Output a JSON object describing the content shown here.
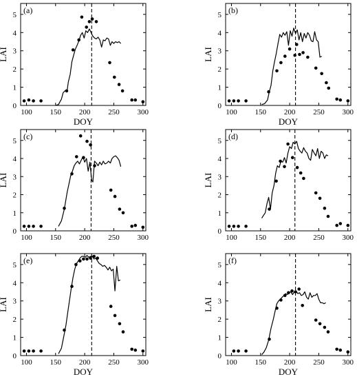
{
  "chart_data": [
    {
      "type": "scatter",
      "panel_label": "(a)",
      "xlabel": "DOY",
      "ylabel": "LAI",
      "xlim": [
        90,
        305
      ],
      "ylim": [
        0,
        5.6
      ],
      "xticks": [
        100,
        150,
        200,
        250,
        300
      ],
      "yticks": [
        0,
        1,
        2,
        3,
        4,
        5
      ],
      "vline_x": 212,
      "series": [
        {
          "kind": "points",
          "x": [
            96,
            104,
            112,
            125,
            169,
            180,
            190,
            195,
            203,
            208,
            213,
            220,
            243,
            251,
            259,
            265,
            281,
            287,
            300
          ],
          "y": [
            0.25,
            0.3,
            0.25,
            0.25,
            0.8,
            3.05,
            3.6,
            4.85,
            4.3,
            4.6,
            4.75,
            4.6,
            2.35,
            1.55,
            1.15,
            0.8,
            0.3,
            0.3,
            0.2
          ]
        },
        {
          "kind": "line",
          "x": [
            150,
            155,
            160,
            163,
            166,
            170,
            172,
            175,
            178,
            181,
            184,
            187,
            190,
            193,
            196,
            199,
            202,
            205,
            208,
            211,
            214,
            217,
            220,
            223,
            226,
            229,
            232,
            235,
            238,
            241,
            244,
            247,
            250,
            253,
            256,
            259,
            262
          ],
          "y": [
            0,
            0.05,
            0.35,
            0.7,
            0.8,
            0.85,
            1.3,
            1.7,
            2.4,
            2.75,
            3.1,
            3.3,
            3.55,
            3.85,
            4.0,
            3.7,
            4.1,
            4.0,
            4.2,
            4.0,
            3.8,
            3.7,
            3.65,
            3.75,
            3.6,
            3.2,
            3.6,
            3.55,
            3.7,
            3.65,
            3.3,
            3.5,
            3.4,
            3.5,
            3.45,
            3.5,
            3.4
          ]
        }
      ]
    },
    {
      "type": "scatter",
      "panel_label": "(b)",
      "xlabel": "DOY",
      "ylabel": "LAI",
      "xlim": [
        90,
        305
      ],
      "ylim": [
        0,
        5.6
      ],
      "xticks": [
        100,
        150,
        200,
        250,
        300
      ],
      "yticks": [
        0,
        1,
        2,
        3,
        4,
        5
      ],
      "vline_x": 210,
      "series": [
        {
          "kind": "points",
          "x": [
            96,
            104,
            112,
            125,
            164,
            178,
            185,
            192,
            200,
            209,
            212,
            217,
            223,
            231,
            245,
            255,
            263,
            267,
            281,
            287,
            300
          ],
          "y": [
            0.25,
            0.25,
            0.25,
            0.25,
            0.75,
            1.9,
            2.35,
            2.7,
            3.1,
            2.75,
            3.35,
            2.8,
            2.9,
            2.65,
            2.05,
            1.75,
            1.25,
            0.95,
            0.35,
            0.3,
            0.25
          ]
        },
        {
          "kind": "line",
          "x": [
            152,
            157,
            162,
            165,
            168,
            171,
            174,
            177,
            180,
            183,
            186,
            189,
            192,
            195,
            198,
            201,
            204,
            207,
            210,
            213,
            216,
            219,
            222,
            225,
            228,
            231,
            234,
            237,
            240,
            243,
            246,
            249,
            252,
            255
          ],
          "y": [
            0.05,
            0.1,
            0.3,
            0.75,
            1.1,
            1.9,
            2.4,
            2.85,
            3.4,
            3.9,
            3.75,
            4.0,
            3.85,
            4.05,
            3.3,
            4.1,
            3.8,
            4.25,
            3.95,
            4.15,
            3.6,
            4.0,
            3.5,
            3.95,
            3.7,
            4.0,
            3.85,
            3.55,
            3.5,
            4.05,
            3.6,
            3.5,
            2.65,
            2.7
          ]
        }
      ]
    },
    {
      "type": "scatter",
      "panel_label": "(c)",
      "xlabel": "",
      "ylabel": "LAI",
      "xlim": [
        90,
        305
      ],
      "ylim": [
        0,
        5.6
      ],
      "xticks": [
        100,
        150,
        200,
        250,
        300
      ],
      "yticks": [
        0,
        1,
        2,
        3,
        4,
        5
      ],
      "vline_x": 211,
      "series": [
        {
          "kind": "points",
          "x": [
            96,
            104,
            112,
            125,
            165,
            178,
            186,
            193,
            198,
            204,
            210,
            217,
            245,
            252,
            260,
            266,
            281,
            287,
            300
          ],
          "y": [
            0.25,
            0.25,
            0.25,
            0.25,
            1.25,
            3.15,
            4.1,
            5.25,
            4.05,
            4.95,
            4.75,
            3.6,
            2.25,
            1.9,
            1.2,
            1.0,
            0.25,
            0.3,
            0.2
          ]
        },
        {
          "kind": "line",
          "x": [
            155,
            160,
            165,
            170,
            173,
            176,
            179,
            182,
            185,
            188,
            191,
            194,
            197,
            200,
            203,
            206,
            209,
            212,
            214,
            217,
            220,
            223,
            226,
            229,
            232,
            235,
            238,
            241,
            244,
            247,
            250,
            253,
            256,
            259,
            262
          ],
          "y": [
            0.25,
            0.55,
            1.2,
            2.15,
            2.6,
            3.05,
            3.3,
            3.6,
            3.75,
            3.85,
            3.7,
            3.9,
            4.1,
            3.8,
            4.0,
            3.3,
            3.8,
            2.8,
            2.7,
            3.85,
            3.75,
            3.6,
            3.8,
            3.65,
            3.85,
            3.7,
            3.75,
            3.85,
            3.75,
            4.0,
            4.1,
            4.15,
            4.05,
            3.9,
            3.55
          ]
        }
      ]
    },
    {
      "type": "scatter",
      "panel_label": "(d)",
      "xlabel": "",
      "ylabel": "LAI",
      "xlim": [
        90,
        305
      ],
      "ylim": [
        0,
        5.6
      ],
      "xticks": [
        100,
        150,
        200,
        250,
        300
      ],
      "yticks": [
        0,
        1,
        2,
        3,
        4,
        5
      ],
      "vline_x": 209,
      "series": [
        {
          "kind": "points",
          "x": [
            96,
            104,
            112,
            125,
            165,
            177,
            184,
            191,
            197,
            205,
            213,
            219,
            224,
            245,
            252,
            260,
            266,
            281,
            287,
            300
          ],
          "y": [
            0.25,
            0.25,
            0.25,
            0.25,
            1.2,
            2.75,
            3.85,
            3.55,
            4.8,
            4.05,
            3.5,
            3.2,
            2.9,
            2.1,
            1.8,
            1.25,
            0.8,
            0.3,
            0.4,
            0.3
          ]
        },
        {
          "kind": "line",
          "x": [
            152,
            155,
            158,
            161,
            164,
            167,
            170,
            173,
            176,
            179,
            182,
            185,
            188,
            191,
            194,
            197,
            200,
            203,
            206,
            209,
            212,
            215,
            218,
            221,
            224,
            227,
            230,
            233,
            236,
            239,
            242,
            245,
            248,
            251,
            254,
            257,
            260,
            263,
            266
          ],
          "y": [
            0.7,
            0.85,
            1.0,
            1.5,
            1.85,
            1.2,
            2.1,
            2.5,
            3.2,
            3.6,
            3.5,
            3.85,
            3.8,
            4.05,
            3.75,
            4.3,
            4.65,
            4.55,
            4.9,
            4.8,
            4.95,
            4.55,
            4.4,
            4.3,
            4.6,
            4.4,
            4.3,
            4.0,
            3.9,
            4.5,
            4.3,
            4.15,
            4.55,
            4.0,
            4.4,
            4.3,
            4.0,
            4.2,
            4.15
          ]
        }
      ]
    },
    {
      "type": "scatter",
      "panel_label": "(e)",
      "xlabel": "DOY",
      "ylabel": "LAI",
      "xlim": [
        90,
        305
      ],
      "ylim": [
        0,
        5.6
      ],
      "xticks": [
        100,
        150,
        200,
        250,
        300
      ],
      "yticks": [
        0,
        1,
        2,
        3,
        4,
        5
      ],
      "vline_x": 212,
      "series": [
        {
          "kind": "points",
          "x": [
            96,
            104,
            112,
            125,
            165,
            178,
            185,
            192,
            198,
            204,
            210,
            216,
            222,
            245,
            252,
            260,
            266,
            281,
            287,
            300
          ],
          "y": [
            0.25,
            0.25,
            0.25,
            0.25,
            1.4,
            3.8,
            5.0,
            5.2,
            5.3,
            5.3,
            5.35,
            5.45,
            5.35,
            2.7,
            2.2,
            1.75,
            1.3,
            0.35,
            0.3,
            0.25
          ]
        },
        {
          "kind": "line",
          "x": [
            155,
            160,
            165,
            168,
            171,
            174,
            177,
            180,
            183,
            186,
            189,
            192,
            195,
            198,
            201,
            204,
            207,
            210,
            213,
            216,
            219,
            222,
            225,
            228,
            231,
            234,
            237,
            240,
            243,
            246,
            249,
            252,
            255,
            258,
            261
          ],
          "y": [
            0.1,
            0.4,
            1.2,
            1.7,
            2.4,
            3.05,
            3.7,
            4.3,
            4.75,
            5.05,
            5.2,
            5.35,
            5.45,
            5.45,
            5.4,
            5.5,
            5.4,
            5.45,
            5.45,
            5.3,
            5.35,
            5.2,
            5.05,
            5.0,
            4.9,
            4.95,
            4.85,
            4.7,
            4.85,
            4.65,
            4.75,
            3.55,
            4.9,
            4.1,
            4.15
          ]
        }
      ]
    },
    {
      "type": "scatter",
      "panel_label": "(f)",
      "xlabel": "DOY",
      "ylabel": "LAI",
      "xlim": [
        90,
        305
      ],
      "ylim": [
        0,
        5.6
      ],
      "xticks": [
        100,
        150,
        200,
        250,
        300
      ],
      "yticks": [
        0,
        1,
        2,
        3,
        4,
        5
      ],
      "vline_x": 210,
      "series": [
        {
          "kind": "points",
          "x": [
            104,
            112,
            125,
            165,
            178,
            185,
            192,
            198,
            204,
            210,
            216,
            222,
            245,
            252,
            260,
            266,
            281,
            287,
            300
          ],
          "y": [
            0.25,
            0.25,
            0.25,
            0.9,
            2.6,
            3.05,
            3.3,
            3.45,
            3.55,
            3.5,
            3.65,
            2.75,
            1.95,
            1.75,
            1.55,
            1.3,
            0.35,
            0.3,
            0.2
          ]
        },
        {
          "kind": "line",
          "x": [
            152,
            156,
            160,
            164,
            168,
            172,
            175,
            178,
            181,
            184,
            187,
            190,
            193,
            196,
            199,
            202,
            205,
            208,
            211,
            214,
            217,
            220,
            223,
            226,
            229,
            232,
            235,
            238,
            241,
            244,
            247,
            250,
            253,
            256,
            259,
            262
          ],
          "y": [
            0.05,
            0.2,
            0.45,
            0.85,
            1.5,
            2.0,
            2.45,
            2.85,
            3.0,
            3.1,
            3.2,
            3.3,
            3.4,
            3.35,
            3.45,
            3.5,
            3.35,
            3.5,
            3.55,
            3.4,
            3.45,
            3.3,
            3.35,
            3.5,
            3.2,
            3.1,
            3.45,
            3.2,
            3.3,
            3.3,
            3.4,
            3.1,
            2.9,
            2.9,
            2.85,
            2.9
          ]
        }
      ]
    }
  ]
}
